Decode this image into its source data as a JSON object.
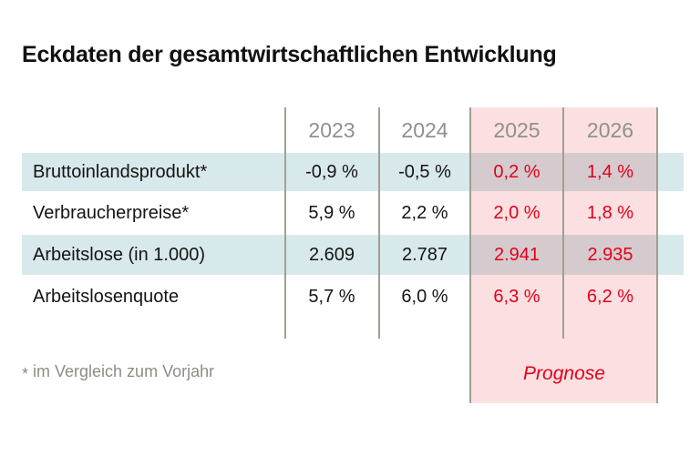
{
  "title": "Eckdaten der gesamtwirtschaftlichen Entwicklung",
  "chart_data": {
    "type": "table",
    "title": "Eckdaten der gesamtwirtschaftlichen Entwicklung",
    "columns": [
      "2023",
      "2024",
      "2025",
      "2026"
    ],
    "rows": [
      {
        "label": "Bruttoinlandsprodukt*",
        "values": [
          "-0,9 %",
          "-0,5 %",
          "0,2 %",
          "1,4 %"
        ]
      },
      {
        "label": "Verbraucherpreise*",
        "values": [
          "5,9 %",
          "2,2 %",
          "2,0 %",
          "1,8 %"
        ]
      },
      {
        "label": "Arbeitslose (in 1.000)",
        "values": [
          "2.609",
          "2.787",
          "2.941",
          "2.935"
        ]
      },
      {
        "label": "Arbeitslosenquote",
        "values": [
          "5,7 %",
          "6,0 %",
          "6,3 %",
          "6,2 %"
        ]
      }
    ],
    "forecast_columns": [
      "2025",
      "2026"
    ],
    "forecast_label": "Prognose",
    "footnote": "* im Vergleich zum Vorjahr"
  },
  "footnote": {
    "marker": "*",
    "text": "im Vergleich zum Vorjahr"
  },
  "colors": {
    "row_stripe_blue": "#d8e9eb",
    "forecast_pink": "#fbdfe1",
    "stripe_pink_overlap": "#d5cbce",
    "forecast_red": "#e2001a",
    "year_header_grey": "#90908a",
    "footnote_grey": "#8d8d85",
    "divider_grey": "#a29e96",
    "text_black": "#141414"
  }
}
